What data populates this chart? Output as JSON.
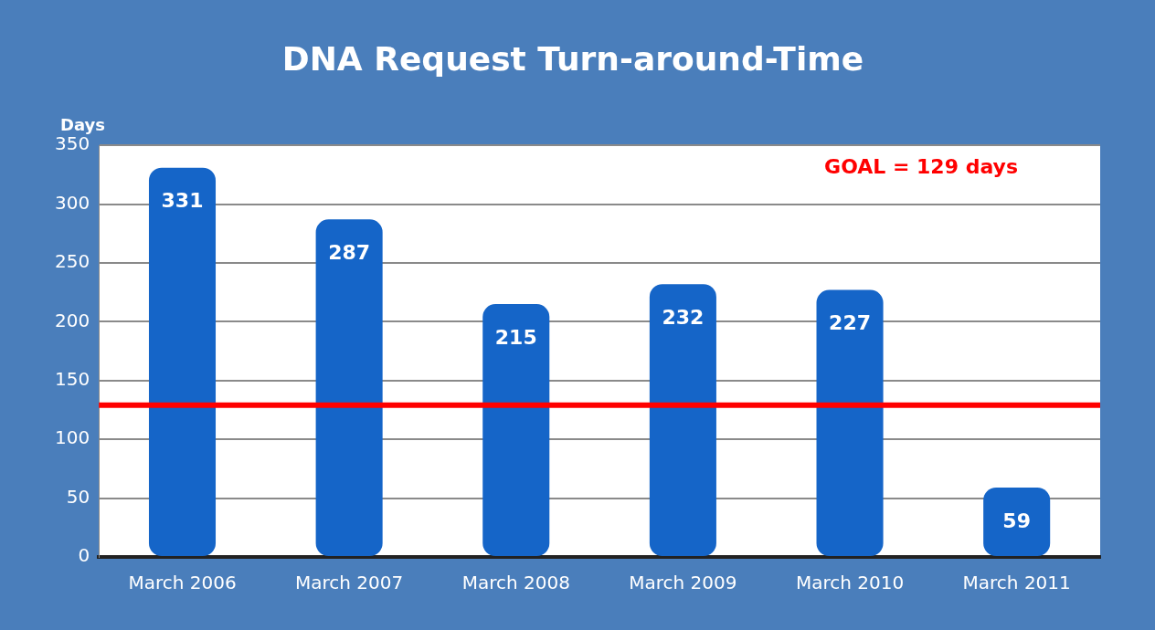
{
  "chart_data": {
    "type": "bar",
    "title": "DNA Request Turn-around-Time",
    "ylabel": "Days",
    "categories": [
      "March 2006",
      "March 2007",
      "March 2008",
      "March 2009",
      "March 2010",
      "March 2011"
    ],
    "values": [
      331,
      287,
      215,
      232,
      227,
      59
    ],
    "color": "#1565c8",
    "ylim": [
      0,
      350
    ],
    "yticks": [
      0,
      50,
      100,
      150,
      200,
      250,
      300,
      350
    ],
    "grid": "y",
    "data_labels": true,
    "legend": false,
    "ref_lines": [
      {
        "axis": "y",
        "value": 129,
        "label": "GOAL = 129 days",
        "color": "#ff0000"
      }
    ]
  }
}
